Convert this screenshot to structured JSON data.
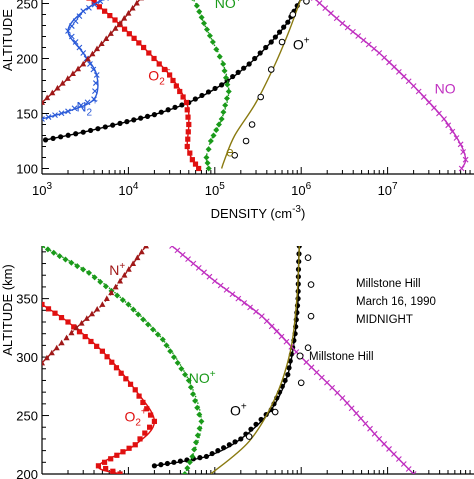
{
  "chart_data": [
    {
      "type": "line",
      "title": "",
      "xlabel": "DENSITY (cm",
      "xlabel_sup": "-3",
      "xlabel_close": ")",
      "ylabel": "ALTITUDE",
      "x_scale": "log",
      "xlim": [
        1000,
        100000000
      ],
      "ylim": [
        95,
        255
      ],
      "x_ticks": [
        {
          "v": 1000,
          "base": "10",
          "exp": "3"
        },
        {
          "v": 10000,
          "base": "10",
          "exp": "4"
        },
        {
          "v": 100000,
          "base": "10",
          "exp": "5"
        },
        {
          "v": 1000000,
          "base": "10",
          "exp": "6"
        },
        {
          "v": 10000000,
          "base": "10",
          "exp": "7"
        }
      ],
      "y_ticks": [
        100,
        150,
        200,
        250
      ],
      "labels": [
        {
          "id": "O+",
          "text": "O",
          "sup": "+",
          "color": "#000000",
          "x": 800000,
          "y": 208
        },
        {
          "id": "NO+",
          "text": "NO",
          "sup": "+",
          "color": "#1a9a1a",
          "x": 100000,
          "y": 246
        },
        {
          "id": "O2+",
          "text": "O",
          "sub": "2",
          "sup": "+",
          "color": "#e01010",
          "x": 17000,
          "y": 180
        },
        {
          "id": "N2+",
          "text": "N",
          "sub": "2",
          "sup": "+",
          "color": "#2a5ad8",
          "x": 2500,
          "y": 152
        },
        {
          "id": "NO",
          "text": "NO",
          "color": "#c030c0",
          "x": 35000000,
          "y": 168
        },
        {
          "id": "e",
          "text": "e",
          "color": "#8a7a10",
          "x": 135000,
          "y": 111
        }
      ],
      "series": [
        {
          "name": "O+",
          "color": "#000000",
          "style": "solid",
          "marker": "dot",
          "x": [
            1100,
            3000,
            8000,
            20000,
            50000,
            120000,
            250000,
            450000,
            700000,
            900000,
            1000000
          ],
          "y": [
            126,
            133,
            141,
            149,
            160,
            176,
            195,
            215,
            233,
            248,
            255
          ]
        },
        {
          "name": "NO+",
          "color": "#1a9a1a",
          "style": "dotted",
          "marker": "diamond",
          "x": [
            85000,
            80000,
            90000,
            120000,
            145000,
            125000,
            95000,
            75000,
            62000,
            55000
          ],
          "y": [
            100,
            110,
            125,
            145,
            170,
            195,
            215,
            232,
            248,
            255
          ]
        },
        {
          "name": "O2+",
          "color": "#e01010",
          "style": "solid",
          "marker": "square",
          "x": [
            65000,
            55000,
            48000,
            50000,
            47000,
            30000,
            15000,
            7000,
            3500
          ],
          "y": [
            100,
            108,
            120,
            140,
            160,
            185,
            210,
            235,
            255
          ]
        },
        {
          "name": "N2+",
          "color": "#2a5ad8",
          "style": "solid",
          "marker": "x",
          "x": [
            1000,
            2000,
            4000,
            4300,
            3000,
            2000,
            3000,
            5500
          ],
          "y": [
            145,
            152,
            163,
            185,
            205,
            225,
            243,
            255
          ]
        },
        {
          "name": "N+",
          "color": "#a01818",
          "style": "solid",
          "marker": "triangle",
          "x": [
            1000,
            3000,
            8000,
            14000
          ],
          "y": [
            160,
            195,
            232,
            255
          ]
        },
        {
          "name": "NO",
          "color": "#c030c0",
          "style": "solid",
          "marker": "x",
          "x": [
            1400000,
            3000000,
            8000000,
            20000000,
            45000000,
            70000000,
            80000000,
            72000000
          ],
          "y": [
            255,
            232,
            205,
            175,
            145,
            122,
            108,
            100
          ]
        },
        {
          "name": "e",
          "color": "#8a7a10",
          "style": "solid",
          "marker": "none",
          "x": [
            120000,
            130000,
            170000,
            300000,
            500000,
            700000,
            900000,
            1000000
          ],
          "y": [
            100,
            108,
            130,
            160,
            195,
            222,
            245,
            255
          ]
        },
        {
          "name": "obs",
          "color": "#000000",
          "style": "none",
          "marker": "circle",
          "x": [
            170000,
            230000,
            270000,
            340000,
            450000,
            600000,
            800000,
            1150000
          ],
          "y": [
            112,
            125,
            140,
            165,
            190,
            215,
            240,
            252
          ]
        }
      ]
    },
    {
      "type": "line",
      "title": "",
      "ylabel": "ALTITUDE (km)",
      "x_scale": "log",
      "xlim": [
        1000,
        100000000
      ],
      "ylim": [
        200,
        395
      ],
      "y_ticks": [
        200,
        250,
        300,
        350
      ],
      "annotation": {
        "line1": "Millstone Hill",
        "line2": "March 16, 1990",
        "line3": "MIDNIGHT"
      },
      "legend": {
        "label": "Millstone Hill",
        "marker": "circle",
        "placement": "right"
      },
      "labels": [
        {
          "id": "N+",
          "text": "N",
          "sup": "+",
          "color": "#a01818",
          "x": 6000,
          "y": 370
        },
        {
          "id": "NO+",
          "text": "NO",
          "sup": "+",
          "color": "#1a9a1a",
          "x": 50000,
          "y": 278
        },
        {
          "id": "O2+",
          "text": "O",
          "sub": "2",
          "sup": "+",
          "color": "#e01010",
          "x": 9000,
          "y": 245
        },
        {
          "id": "O+",
          "text": "O",
          "sup": "+",
          "color": "#000000",
          "x": 150000,
          "y": 250
        }
      ],
      "series": [
        {
          "name": "O+",
          "color": "#000000",
          "style": "solid",
          "marker": "dot",
          "x": [
            20000,
            80000,
            200000,
            450000,
            700000,
            850000,
            920000,
            930000,
            950000
          ],
          "y": [
            207,
            215,
            230,
            255,
            285,
            320,
            350,
            375,
            395
          ]
        },
        {
          "name": "NO+",
          "color": "#1a9a1a",
          "style": "dotted",
          "marker": "diamond",
          "x": [
            45000,
            55000,
            70000,
            50000,
            25000,
            10000,
            3500,
            1000
          ],
          "y": [
            200,
            215,
            245,
            280,
            315,
            345,
            372,
            395
          ]
        },
        {
          "name": "O2+",
          "color": "#e01010",
          "style": "solid",
          "marker": "square",
          "x": [
            8000,
            4500,
            12000,
            20000,
            12000,
            5000,
            2000,
            1000
          ],
          "y": [
            200,
            207,
            225,
            245,
            272,
            305,
            330,
            345
          ]
        },
        {
          "name": "N+",
          "color": "#a01818",
          "style": "dashed",
          "marker": "triangle",
          "x": [
            1000,
            2500,
            5000,
            9000,
            16000
          ],
          "y": [
            295,
            325,
            345,
            370,
            395
          ]
        },
        {
          "name": "NO",
          "color": "#c030c0",
          "style": "solid",
          "marker": "x",
          "x": [
            20000000,
            8000000,
            3000000,
            1000000,
            350000,
            100000,
            32000
          ],
          "y": [
            200,
            230,
            265,
            300,
            335,
            365,
            395
          ]
        },
        {
          "name": "e",
          "color": "#8a7a10",
          "style": "solid",
          "marker": "none",
          "x": [
            90000,
            250000,
            500000,
            750000,
            880000,
            930000,
            950000
          ],
          "y": [
            200,
            228,
            265,
            305,
            345,
            375,
            395
          ]
        },
        {
          "name": "obs",
          "color": "#000000",
          "style": "none",
          "marker": "circle",
          "x": [
            250000,
            500000,
            1000000,
            1200000,
            1300000,
            1300000,
            1200000
          ],
          "y": [
            232,
            253,
            278,
            308,
            335,
            362,
            385
          ]
        }
      ]
    }
  ]
}
